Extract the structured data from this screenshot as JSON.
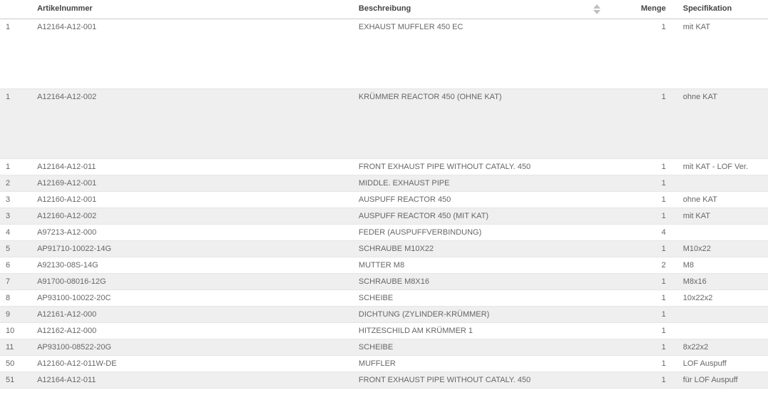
{
  "columns": {
    "idx": "",
    "article": "Artikelnummer",
    "desc": "Beschreibung",
    "qty": "Menge",
    "spec": "Specifikation"
  },
  "colors": {
    "header_text": "#444444",
    "cell_text": "#666666",
    "row_white": "#ffffff",
    "row_gray": "#efefef",
    "border": "#cccccc",
    "row_border": "#e5e5e5",
    "arrow": "#bfbfbf"
  },
  "font_size": 11,
  "rows": [
    {
      "idx": "1",
      "article": "A12164-A12-001",
      "desc": "EXHAUST MUFFLER 450 EC",
      "qty": "1",
      "spec": "mit KAT",
      "tall": true,
      "bg": "white"
    },
    {
      "idx": "1",
      "article": "A12164-A12-002",
      "desc": "KRÜMMER REACTOR 450 (OHNE KAT)",
      "qty": "1",
      "spec": "ohne KAT",
      "tall": true,
      "bg": "gray"
    },
    {
      "idx": "1",
      "article": "A12164-A12-011",
      "desc": "FRONT EXHAUST PIPE WITHOUT CATALY. 450",
      "qty": "1",
      "spec": "mit KAT - LOF Ver.",
      "tall": false,
      "bg": "white"
    },
    {
      "idx": "2",
      "article": "A12169-A12-001",
      "desc": "MIDDLE. EXHAUST PIPE",
      "qty": "1",
      "spec": "",
      "tall": false,
      "bg": "gray"
    },
    {
      "idx": "3",
      "article": "A12160-A12-001",
      "desc": "AUSPUFF REACTOR 450",
      "qty": "1",
      "spec": "ohne KAT",
      "tall": false,
      "bg": "white"
    },
    {
      "idx": "3",
      "article": "A12160-A12-002",
      "desc": "AUSPUFF REACTOR 450 (MIT KAT)",
      "qty": "1",
      "spec": "mit KAT",
      "tall": false,
      "bg": "gray"
    },
    {
      "idx": "4",
      "article": "A97213-A12-000",
      "desc": "FEDER (AUSPUFFVERBINDUNG)",
      "qty": "4",
      "spec": "",
      "tall": false,
      "bg": "white"
    },
    {
      "idx": "5",
      "article": "AP91710-10022-14G",
      "desc": "SCHRAUBE M10X22",
      "qty": "1",
      "spec": "M10x22",
      "tall": false,
      "bg": "gray"
    },
    {
      "idx": "6",
      "article": "A92130-08S-14G",
      "desc": "MUTTER M8",
      "qty": "2",
      "spec": "M8",
      "tall": false,
      "bg": "white"
    },
    {
      "idx": "7",
      "article": "A91700-08016-12G",
      "desc": "SCHRAUBE M8X16",
      "qty": "1",
      "spec": "M8x16",
      "tall": false,
      "bg": "gray"
    },
    {
      "idx": "8",
      "article": "AP93100-10022-20C",
      "desc": "SCHEIBE",
      "qty": "1",
      "spec": "10x22x2",
      "tall": false,
      "bg": "white"
    },
    {
      "idx": "9",
      "article": "A12161-A12-000",
      "desc": "DICHTUNG (ZYLINDER-KRÜMMER)",
      "qty": "1",
      "spec": "",
      "tall": false,
      "bg": "gray"
    },
    {
      "idx": "10",
      "article": "A12162-A12-000",
      "desc": "HITZESCHILD AM KRÜMMER 1",
      "qty": "1",
      "spec": "",
      "tall": false,
      "bg": "white"
    },
    {
      "idx": "11",
      "article": "AP93100-08522-20G",
      "desc": "SCHEIBE",
      "qty": "1",
      "spec": "8x22x2",
      "tall": false,
      "bg": "gray"
    },
    {
      "idx": "50",
      "article": "A12160-A12-011W-DE",
      "desc": "MUFFLER",
      "qty": "1",
      "spec": "LOF Auspuff",
      "tall": false,
      "bg": "white"
    },
    {
      "idx": "51",
      "article": "A12164-A12-011",
      "desc": "FRONT EXHAUST PIPE WITHOUT CATALY. 450",
      "qty": "1",
      "spec": "für LOF Auspuff",
      "tall": false,
      "bg": "gray"
    }
  ]
}
